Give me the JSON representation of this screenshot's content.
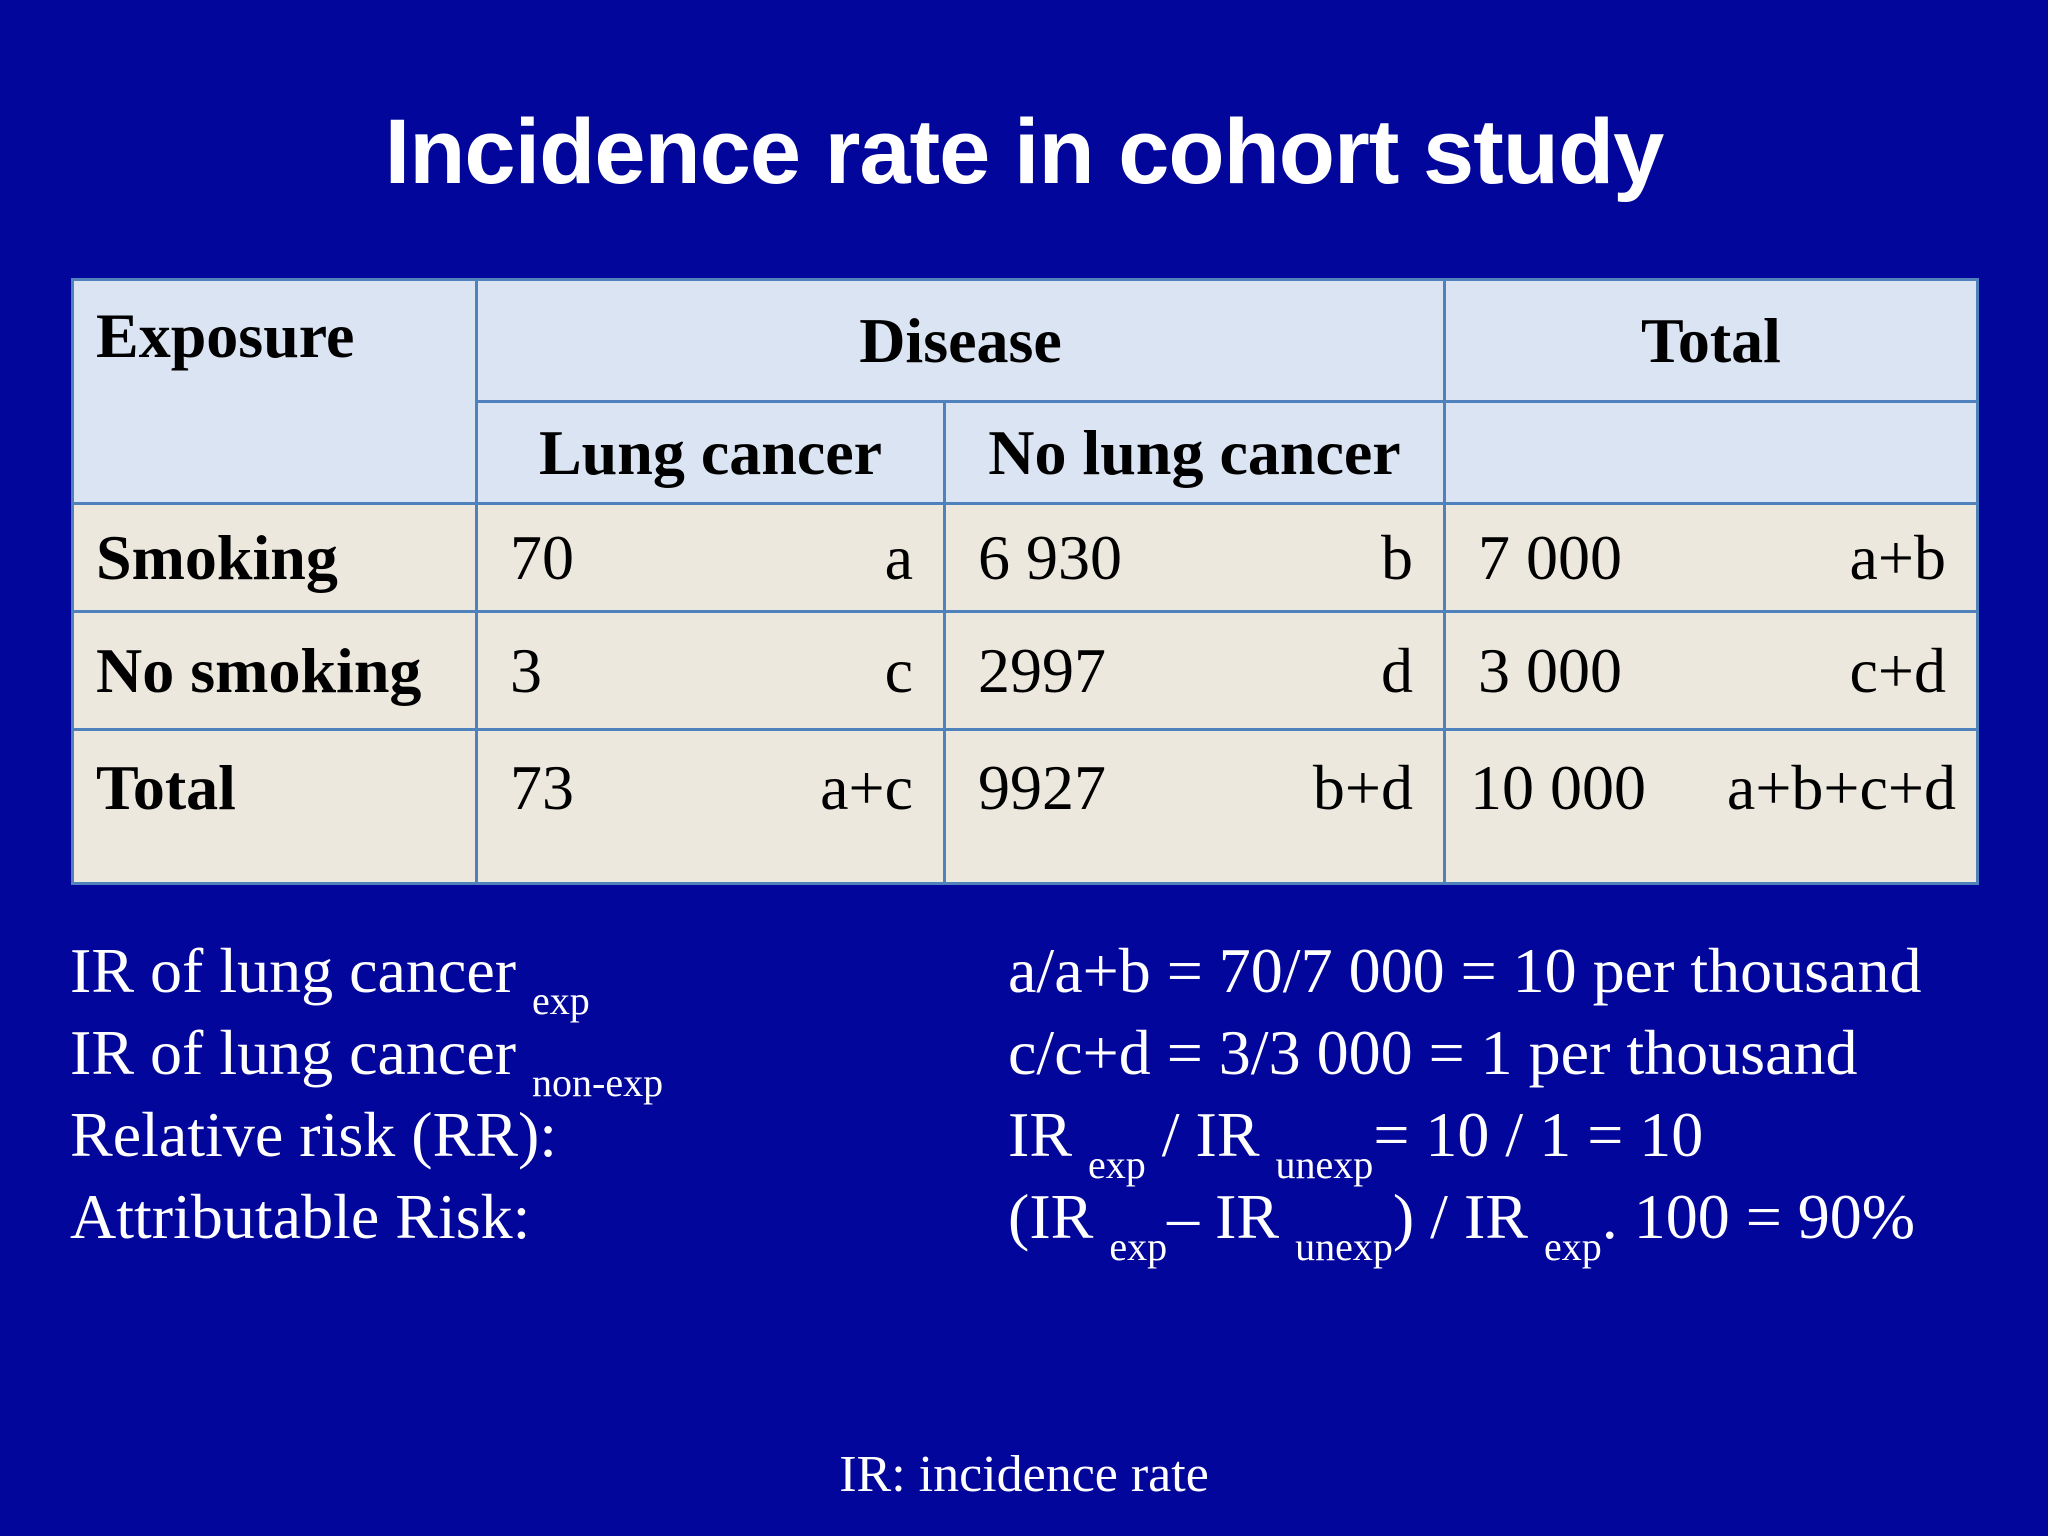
{
  "title": "Incidence rate in cohort study",
  "table": {
    "header": {
      "exposure": "Exposure",
      "disease": "Disease",
      "total": "Total",
      "lung_cancer": "Lung cancer",
      "no_lung_cancer": "No lung cancer"
    },
    "rows": [
      {
        "label": "Smoking",
        "c1": {
          "value": "70",
          "symbol": "a"
        },
        "c2": {
          "value": "6 930",
          "symbol": "b"
        },
        "c3": {
          "value": "7 000",
          "symbol": "a+b"
        }
      },
      {
        "label": "No smoking",
        "c1": {
          "value": "3",
          "symbol": "c"
        },
        "c2": {
          "value": "2997",
          "symbol": "d"
        },
        "c3": {
          "value": "3 000",
          "symbol": "c+d"
        }
      },
      {
        "label": "Total",
        "c1": {
          "value": "73",
          "symbol": "a+c"
        },
        "c2": {
          "value": "9927",
          "symbol": "b+d"
        },
        "c3": {
          "value": "10 000",
          "symbol": "a+b+c+d"
        }
      }
    ]
  },
  "notes": {
    "ir_exp": {
      "text": "IR of lung cancer ",
      "sub": "exp"
    },
    "ir_nonexp": {
      "text": "IR of lung cancer ",
      "sub": "non-exp"
    },
    "rr": "Relative risk (RR):",
    "ar": "Attributable Risk:"
  },
  "formulas": {
    "f1": "a/a+b = 70/7 000 = 10 per thousand",
    "f2": "c/c+d = 3/3 000 = 1 per thousand",
    "f3": {
      "p1": "IR ",
      "s1": "exp",
      "p2": " / IR ",
      "s2": "unexp",
      "p3": "= 10 / 1 = 10"
    },
    "f4": {
      "p1": "(IR ",
      "s1": "exp",
      "p2": "– IR ",
      "s2": "unexp",
      "p3": ") / IR ",
      "s3": "exp",
      "p4": ". 100 = 90%"
    }
  },
  "footnote": "IR: incidence rate"
}
